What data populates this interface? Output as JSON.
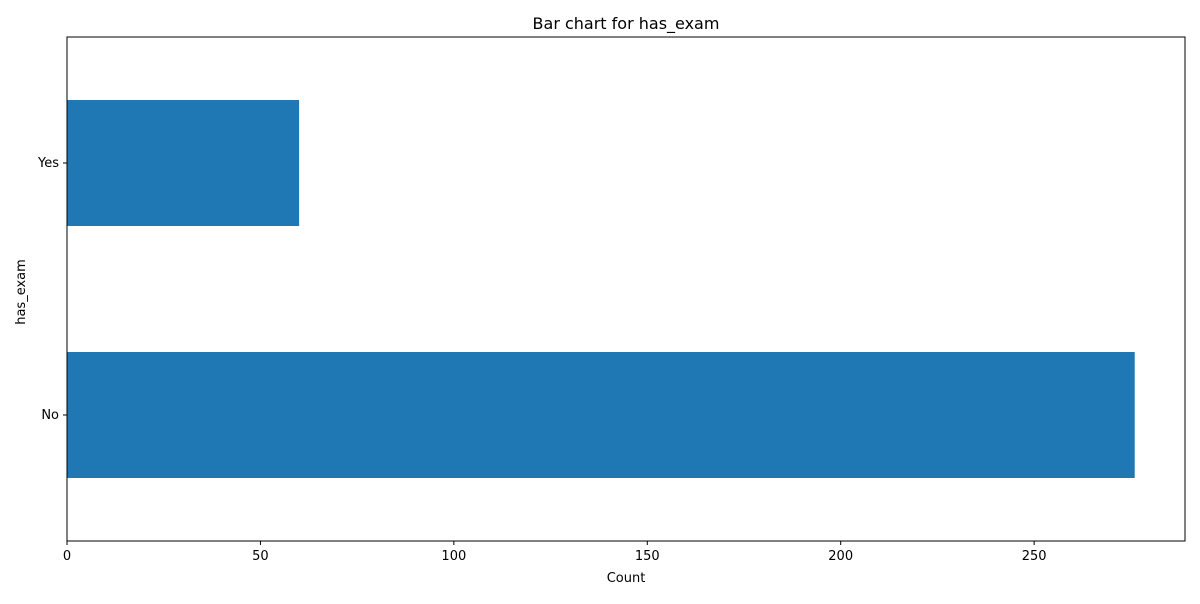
{
  "chart_data": {
    "type": "bar",
    "orientation": "horizontal",
    "title": "Bar chart for has_exam",
    "xlabel": "Count",
    "ylabel": "has_exam",
    "categories": [
      "No",
      "Yes"
    ],
    "values": [
      276,
      60
    ],
    "xlim": [
      0,
      289
    ],
    "xticks": [
      0,
      50,
      100,
      150,
      200,
      250
    ],
    "grid": false,
    "legend": "none",
    "bar_color": "#1f77b4"
  }
}
